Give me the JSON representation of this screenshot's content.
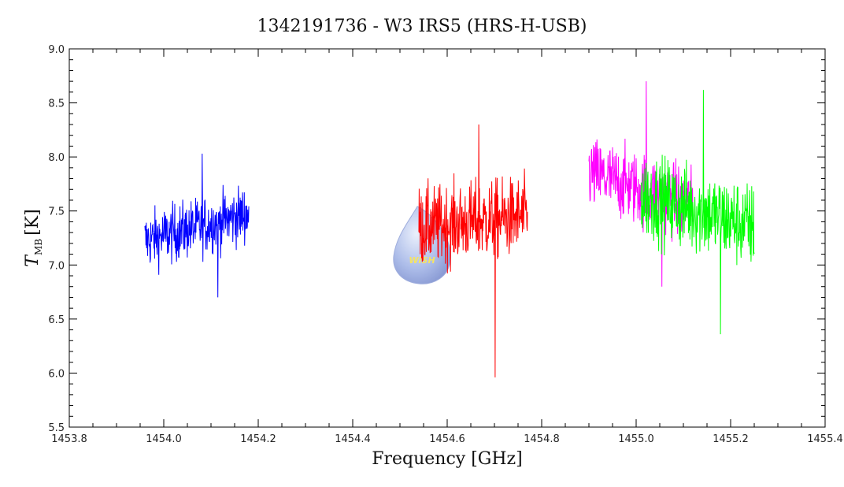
{
  "chart_data": {
    "type": "line",
    "title": "1342191736 - W3 IRS5 (HRS-H-USB)",
    "xlabel": "Frequency [GHz]",
    "ylabel_main": "T",
    "ylabel_sub": "MB",
    "ylabel_unit": "[K]",
    "xlim": [
      1453.8,
      1455.4
    ],
    "ylim": [
      5.5,
      9.0
    ],
    "x_ticks": [
      "1453.8",
      "1454.0",
      "1454.2",
      "1454.4",
      "1454.6",
      "1454.8",
      "1455.0",
      "1455.2",
      "1455.4"
    ],
    "y_ticks": [
      "5.5",
      "6.0",
      "6.5",
      "7.0",
      "7.5",
      "8.0",
      "8.5",
      "9.0"
    ],
    "grid": false,
    "logo_text": "WISH",
    "series": [
      {
        "color": "#0000ff",
        "x_range": [
          1453.96,
          1454.18
        ],
        "mean": 7.35,
        "trend": 0.25,
        "noise": 0.22,
        "ymin": 6.7,
        "ymax": 8.03,
        "points": 300
      },
      {
        "color": "#ff0000",
        "x_range": [
          1454.54,
          1454.77
        ],
        "mean": 7.4,
        "trend": 0.1,
        "noise": 0.3,
        "ymin": 5.96,
        "ymax": 8.3,
        "points": 320
      },
      {
        "color": "#ff00ff",
        "x_range": [
          1454.9,
          1455.12
        ],
        "mean": 7.7,
        "trend": -0.3,
        "noise": 0.28,
        "ymin": 6.8,
        "ymax": 8.7,
        "points": 300
      },
      {
        "color": "#00ff00",
        "x_range": [
          1455.01,
          1455.25
        ],
        "mean": 7.5,
        "trend": -0.3,
        "noise": 0.33,
        "ymin": 6.36,
        "ymax": 8.62,
        "points": 320
      }
    ]
  }
}
